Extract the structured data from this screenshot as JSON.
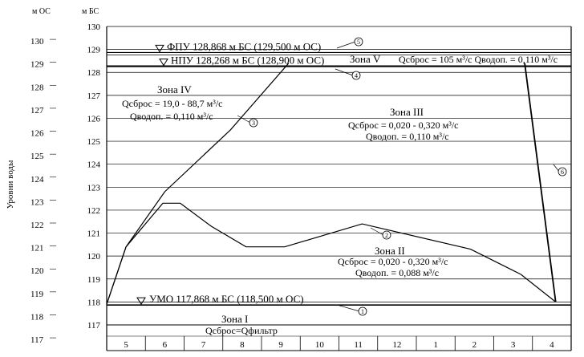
{
  "chart_data": {
    "type": "line",
    "axis_headers": {
      "left_outer": "м ОС",
      "left_inner": "м БС"
    },
    "ylabel": "Уровни воды",
    "y_bs": {
      "min": 117,
      "max": 130,
      "ticks": [
        130,
        129,
        128,
        127,
        126,
        125,
        124,
        123,
        122,
        121,
        120,
        119,
        118,
        117
      ]
    },
    "y_os": {
      "ticks": [
        130,
        129,
        128,
        127,
        126,
        125,
        124,
        123,
        122,
        121,
        120,
        119,
        118,
        117
      ]
    },
    "months": [
      "5",
      "6",
      "7",
      "8",
      "9",
      "10",
      "11",
      "12",
      "1",
      "2",
      "3",
      "4"
    ],
    "levels": [
      {
        "id": "5",
        "label": "ФПУ 128,868 м БС (129,500 м ОС)",
        "value": 128.868
      },
      {
        "id": "4",
        "label": "НПУ 128,268 м БС (128,900 м ОС)",
        "value": 128.268
      },
      {
        "id": "1",
        "label": "УМО 117,868 м БС (118,500 м ОС)",
        "value": 117.868
      }
    ],
    "series": [
      {
        "id": "3",
        "x": [
          0.0,
          0.5,
          1.5,
          3.2,
          4.7
        ],
        "y": [
          117.9,
          120.4,
          122.8,
          125.5,
          128.4
        ]
      },
      {
        "id": "2",
        "x": [
          0.0,
          0.5,
          1.45,
          1.9,
          2.7,
          3.6,
          4.6,
          6.6,
          9.4,
          10.7,
          11.6
        ],
        "y": [
          117.9,
          120.4,
          122.3,
          122.3,
          121.3,
          120.4,
          120.4,
          121.4,
          120.3,
          119.2,
          118.0
        ]
      },
      {
        "id": "6",
        "x": [
          10.8,
          11.6
        ],
        "y": [
          128.4,
          118.0
        ]
      }
    ],
    "zones": [
      {
        "name": "Зона V",
        "flows": [
          "Qсброс = 105 м³/с  Qводоп. = 0,110 м³/с"
        ]
      },
      {
        "name": "Зона IV",
        "flows": [
          "Qсброс = 19,0 - 88,7 м³/с",
          "Qводоп. = 0,110 м³/с"
        ]
      },
      {
        "name": "Зона III",
        "flows": [
          "Qсброс = 0,020 - 0,320 м³/с",
          "Qводоп. = 0,110 м³/с"
        ]
      },
      {
        "name": "Зона II",
        "flows": [
          "Qсброс = 0,020 - 0,320 м³/с",
          "Qводоп. = 0,088 м³/с"
        ]
      },
      {
        "name": "Зона I",
        "flows": [
          "Qсброс=Qфильтр"
        ]
      }
    ]
  }
}
